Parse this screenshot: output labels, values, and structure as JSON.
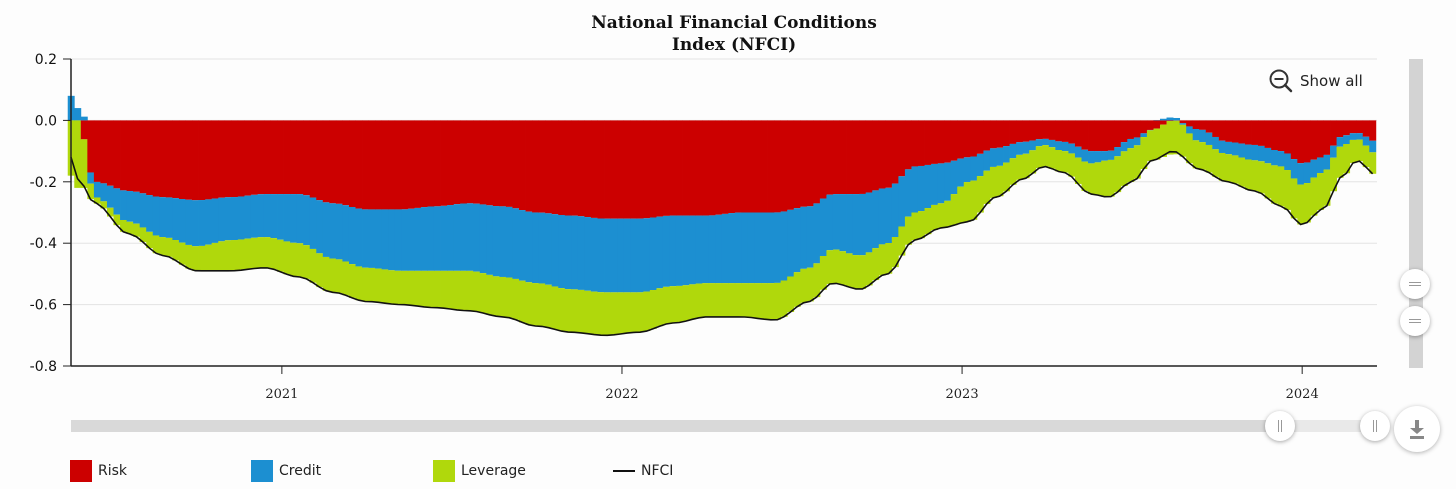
{
  "chart_data": {
    "type": "bar",
    "stacked": true,
    "title": "National Financial Conditions Index (NFCI)",
    "title_lines": [
      "National Financial Conditions",
      "Index (NFCI)"
    ],
    "ylim": [
      -0.8,
      0.2
    ],
    "y_ticks": [
      {
        "value": 0.2,
        "label": "0.2"
      },
      {
        "value": 0.0,
        "label": "0.0"
      },
      {
        "value": -0.2,
        "label": "-0.2"
      },
      {
        "value": -0.4,
        "label": "-0.4"
      },
      {
        "value": -0.6,
        "label": "-0.6"
      },
      {
        "value": -0.8,
        "label": "-0.8"
      }
    ],
    "x_range": [
      2020.38,
      2024.22
    ],
    "x_ticks": [
      {
        "value": 2021.0,
        "label": "2021"
      },
      {
        "value": 2022.0,
        "label": "2022"
      },
      {
        "value": 2023.0,
        "label": "2023"
      },
      {
        "value": 2024.0,
        "label": "2024"
      }
    ],
    "series_colors": {
      "Risk": "#cc0000",
      "Credit": "#1c8fd1",
      "Leverage": "#b0d80c",
      "NFCI": "#111111"
    },
    "points": [
      {
        "t": 2020.38,
        "risk": 0.0,
        "credit": 0.08,
        "leverage": -0.18,
        "nfci": -0.12
      },
      {
        "t": 2020.4,
        "risk": 0.0,
        "credit": 0.04,
        "leverage": -0.22,
        "nfci": -0.19
      },
      {
        "t": 2020.45,
        "risk": -0.2,
        "credit": -0.05,
        "leverage": -0.02,
        "nfci": -0.27
      },
      {
        "t": 2020.55,
        "risk": -0.23,
        "credit": -0.1,
        "leverage": -0.04,
        "nfci": -0.37
      },
      {
        "t": 2020.65,
        "risk": -0.25,
        "credit": -0.13,
        "leverage": -0.06,
        "nfci": -0.44
      },
      {
        "t": 2020.75,
        "risk": -0.26,
        "credit": -0.15,
        "leverage": -0.08,
        "nfci": -0.49
      },
      {
        "t": 2020.85,
        "risk": -0.25,
        "credit": -0.14,
        "leverage": -0.1,
        "nfci": -0.49
      },
      {
        "t": 2020.95,
        "risk": -0.24,
        "credit": -0.14,
        "leverage": -0.1,
        "nfci": -0.48
      },
      {
        "t": 2021.05,
        "risk": -0.24,
        "credit": -0.16,
        "leverage": -0.11,
        "nfci": -0.51
      },
      {
        "t": 2021.15,
        "risk": -0.27,
        "credit": -0.18,
        "leverage": -0.11,
        "nfci": -0.56
      },
      {
        "t": 2021.25,
        "risk": -0.29,
        "credit": -0.19,
        "leverage": -0.11,
        "nfci": -0.59
      },
      {
        "t": 2021.35,
        "risk": -0.29,
        "credit": -0.2,
        "leverage": -0.11,
        "nfci": -0.6
      },
      {
        "t": 2021.45,
        "risk": -0.28,
        "credit": -0.21,
        "leverage": -0.12,
        "nfci": -0.61
      },
      {
        "t": 2021.55,
        "risk": -0.27,
        "credit": -0.22,
        "leverage": -0.13,
        "nfci": -0.62
      },
      {
        "t": 2021.65,
        "risk": -0.28,
        "credit": -0.23,
        "leverage": -0.13,
        "nfci": -0.64
      },
      {
        "t": 2021.75,
        "risk": -0.3,
        "credit": -0.23,
        "leverage": -0.14,
        "nfci": -0.67
      },
      {
        "t": 2021.85,
        "risk": -0.31,
        "credit": -0.24,
        "leverage": -0.14,
        "nfci": -0.69
      },
      {
        "t": 2021.95,
        "risk": -0.32,
        "credit": -0.24,
        "leverage": -0.14,
        "nfci": -0.7
      },
      {
        "t": 2022.05,
        "risk": -0.32,
        "credit": -0.24,
        "leverage": -0.13,
        "nfci": -0.69
      },
      {
        "t": 2022.15,
        "risk": -0.31,
        "credit": -0.23,
        "leverage": -0.12,
        "nfci": -0.66
      },
      {
        "t": 2022.25,
        "risk": -0.31,
        "credit": -0.22,
        "leverage": -0.11,
        "nfci": -0.64
      },
      {
        "t": 2022.35,
        "risk": -0.3,
        "credit": -0.23,
        "leverage": -0.11,
        "nfci": -0.64
      },
      {
        "t": 2022.45,
        "risk": -0.3,
        "credit": -0.23,
        "leverage": -0.12,
        "nfci": -0.65
      },
      {
        "t": 2022.55,
        "risk": -0.28,
        "credit": -0.2,
        "leverage": -0.11,
        "nfci": -0.59
      },
      {
        "t": 2022.62,
        "risk": -0.24,
        "credit": -0.18,
        "leverage": -0.11,
        "nfci": -0.53
      },
      {
        "t": 2022.7,
        "risk": -0.24,
        "credit": -0.2,
        "leverage": -0.11,
        "nfci": -0.55
      },
      {
        "t": 2022.78,
        "risk": -0.22,
        "credit": -0.18,
        "leverage": -0.1,
        "nfci": -0.5
      },
      {
        "t": 2022.86,
        "risk": -0.15,
        "credit": -0.15,
        "leverage": -0.09,
        "nfci": -0.39
      },
      {
        "t": 2022.94,
        "risk": -0.14,
        "credit": -0.13,
        "leverage": -0.08,
        "nfci": -0.35
      },
      {
        "t": 2023.02,
        "risk": -0.12,
        "credit": -0.08,
        "leverage": -0.13,
        "nfci": -0.33
      },
      {
        "t": 2023.1,
        "risk": -0.09,
        "credit": -0.06,
        "leverage": -0.1,
        "nfci": -0.25
      },
      {
        "t": 2023.18,
        "risk": -0.07,
        "credit": -0.04,
        "leverage": -0.08,
        "nfci": -0.19
      },
      {
        "t": 2023.24,
        "risk": -0.06,
        "credit": -0.02,
        "leverage": -0.07,
        "nfci": -0.15
      },
      {
        "t": 2023.3,
        "risk": -0.07,
        "credit": -0.03,
        "leverage": -0.07,
        "nfci": -0.17
      },
      {
        "t": 2023.38,
        "risk": -0.1,
        "credit": -0.04,
        "leverage": -0.1,
        "nfci": -0.24
      },
      {
        "t": 2023.43,
        "risk": -0.1,
        "credit": -0.03,
        "leverage": -0.12,
        "nfci": -0.25
      },
      {
        "t": 2023.5,
        "risk": -0.06,
        "credit": -0.03,
        "leverage": -0.11,
        "nfci": -0.2
      },
      {
        "t": 2023.56,
        "risk": -0.03,
        "credit": 0.0,
        "leverage": -0.1,
        "nfci": -0.13
      },
      {
        "t": 2023.62,
        "risk": 0.0,
        "credit": 0.01,
        "leverage": -0.11,
        "nfci": -0.1
      },
      {
        "t": 2023.7,
        "risk": -0.03,
        "credit": -0.04,
        "leverage": -0.09,
        "nfci": -0.16
      },
      {
        "t": 2023.78,
        "risk": -0.07,
        "credit": -0.04,
        "leverage": -0.09,
        "nfci": -0.2
      },
      {
        "t": 2023.86,
        "risk": -0.08,
        "credit": -0.05,
        "leverage": -0.1,
        "nfci": -0.23
      },
      {
        "t": 2023.94,
        "risk": -0.1,
        "credit": -0.05,
        "leverage": -0.13,
        "nfci": -0.28
      },
      {
        "t": 2024.0,
        "risk": -0.14,
        "credit": -0.07,
        "leverage": -0.13,
        "nfci": -0.34
      },
      {
        "t": 2024.06,
        "risk": -0.12,
        "credit": -0.05,
        "leverage": -0.12,
        "nfci": -0.29
      },
      {
        "t": 2024.12,
        "risk": -0.05,
        "credit": -0.03,
        "leverage": -0.1,
        "nfci": -0.18
      },
      {
        "t": 2024.16,
        "risk": -0.04,
        "credit": -0.02,
        "leverage": -0.07,
        "nfci": -0.13
      },
      {
        "t": 2024.22,
        "risk": -0.07,
        "credit": -0.04,
        "leverage": -0.07,
        "nfci": -0.18
      }
    ]
  },
  "controls": {
    "show_all_label": "Show all"
  },
  "legend": {
    "risk": "Risk",
    "credit": "Credit",
    "leverage": "Leverage",
    "nfci": "NFCI"
  }
}
